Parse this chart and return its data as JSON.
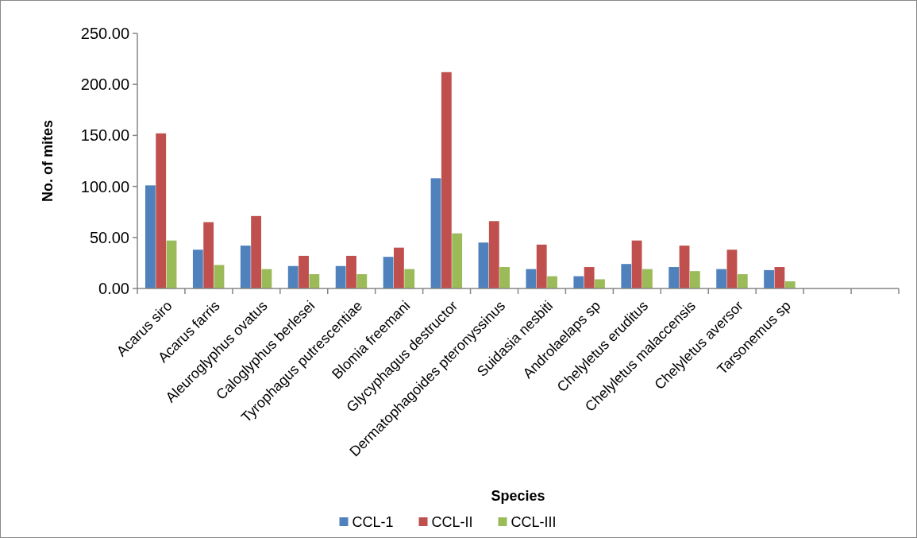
{
  "chart_data": {
    "type": "bar",
    "xlabel": "Species",
    "ylabel": "No. of mites",
    "categories": [
      "Acarus siro",
      "Acarus farris",
      "Aleuroglyphus ovatus",
      "Caloglyphus berlesei",
      "Tyrophagus putrescentiae",
      "Blomia freemani",
      "Glycyphagus destructor",
      "Dermatophagoides pteronyssinus",
      "Suidasia nesbiti",
      "Androlaelaps sp",
      "Chelyletus eruditus",
      "Chelyletus malaccensis",
      "Chelyletus aversor",
      "Tarsonemus sp",
      null,
      null
    ],
    "series": [
      {
        "name": "CCL-1",
        "color": "#4f81bd",
        "values": [
          101,
          38,
          42,
          22,
          22,
          31,
          108,
          45,
          19,
          12,
          24,
          21,
          19,
          18,
          null,
          null
        ]
      },
      {
        "name": "CCL-II",
        "color": "#c0504d",
        "values": [
          152,
          65,
          71,
          32,
          32,
          40,
          212,
          66,
          43,
          21,
          47,
          42,
          38,
          21,
          null,
          null
        ]
      },
      {
        "name": "CCL-III",
        "color": "#9bbb59",
        "values": [
          47,
          23,
          19,
          14,
          14,
          19,
          54,
          21,
          12,
          9,
          19,
          17,
          14,
          7,
          null,
          null
        ]
      }
    ],
    "ylim": [
      0,
      250
    ],
    "yticks": [
      {
        "value": 0,
        "label": "0.00"
      },
      {
        "value": 50,
        "label": "50.00"
      },
      {
        "value": 100,
        "label": "100.00"
      },
      {
        "value": 150,
        "label": "150.00"
      },
      {
        "value": 200,
        "label": "200.00"
      },
      {
        "value": 250,
        "label": "250.00"
      }
    ],
    "grid": false,
    "legend": "bottom"
  }
}
